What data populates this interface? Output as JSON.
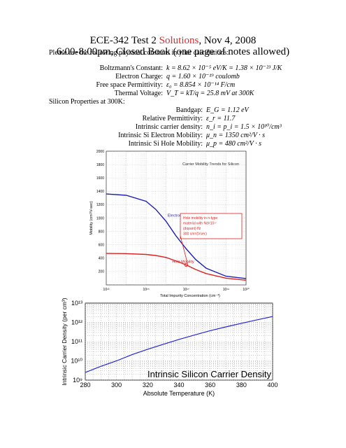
{
  "header": {
    "title_prefix": "ECE-342 Test 2 ",
    "title_solutions": "Solutions",
    "title_suffix": ", Nov 4, 2008",
    "subtitle": "6:00-8:00pm, Closed Book (one page of notes allowed)",
    "intro": "Please use the following physical constants in your calculations:"
  },
  "constants": [
    {
      "label": "Boltzmann's Constant:",
      "value": "k = 8.62 × 10⁻⁵ eV/K = 1.38 × 10⁻²³ J/K"
    },
    {
      "label": "Electron Charge:",
      "value": "q = 1.60 × 10⁻¹⁹ coulomb"
    },
    {
      "label": "Free space Permittivity:",
      "value": "ε₀ = 8.854 × 10⁻¹⁴ F/cm"
    },
    {
      "label": "Thermal Voltage:",
      "value": "V_T = kT/q = 25.8 mV at 300K"
    }
  ],
  "silicon_heading": "Silicon Properties at 300K:",
  "silicon": [
    {
      "label": "Bandgap:",
      "value": "E_G = 1.12 eV"
    },
    {
      "label": "Relative Permittivity:",
      "value": "ε_r = 11.7"
    },
    {
      "label": "Intrinsic carrier density:",
      "value": "n_i = p_i = 1.5 × 10¹⁰/cm³"
    },
    {
      "label": "Intrinsic Si Electron Mobility:",
      "value": "μ_n = 1350 cm²/V · s"
    },
    {
      "label": "Intrinsic Si Hole Mobility:",
      "value": "μ_p = 480 cm²/V · s"
    }
  ],
  "chart_data": [
    {
      "type": "line",
      "title": "Carrier Mobility Trends for Silicon",
      "xlabel": "Total Impurity Concentration (cm⁻³)",
      "ylabel": "Mobility (cm²/V-sec)",
      "x_scale": "log",
      "xlim": [
        10000000000000.0,
        1e+20
      ],
      "ylim": [
        0,
        2000
      ],
      "x_ticks": [
        "10¹³",
        "10¹⁵",
        "10¹⁷",
        "10¹⁹",
        "10²⁰"
      ],
      "y_ticks": [
        "200",
        "400",
        "600",
        "800",
        "1000",
        "1200",
        "1400",
        "1600",
        "1800",
        "2000"
      ],
      "grid": true,
      "series": [
        {
          "name": "Electron Mobility",
          "color": "#1f1fb4",
          "x": [
            10000000000000.0,
            100000000000000.0,
            1000000000000000.0,
            3000000000000000.0,
            1e+16,
            3e+16,
            1e+17,
            3e+17,
            1e+18,
            1e+19,
            1e+20
          ],
          "values": [
            1360,
            1340,
            1250,
            1130,
            950,
            740,
            540,
            380,
            250,
            130,
            95
          ]
        },
        {
          "name": "Hole Mobility",
          "color": "#e02020",
          "x": [
            10000000000000.0,
            100000000000000.0,
            1000000000000000.0,
            3000000000000000.0,
            1e+16,
            3e+16,
            1e+17,
            3e+17,
            1e+18,
            1e+19,
            1e+20
          ],
          "values": [
            470,
            468,
            455,
            440,
            410,
            360,
            300,
            230,
            170,
            100,
            70
          ]
        }
      ],
      "marker": {
        "x": 1e+17,
        "y": 300
      },
      "annotation": {
        "lines": [
          "Hole mobility in n-type",
          "material with Nd=10¹⁷",
          "(dopant) Ifz",
          "300 cm²/(Vsec)"
        ]
      }
    },
    {
      "type": "line",
      "title": "Intrinsic Silicon Carrier Density",
      "xlabel": "Absolute Temperature (K)",
      "ylabel": "Intrinsic Carrier Density (per cm³)",
      "y_scale": "log",
      "xlim": [
        280,
        400
      ],
      "ylim": [
        1000000000.0,
        10000000000000.0
      ],
      "x_ticks": [
        "280",
        "300",
        "320",
        "340",
        "360",
        "380",
        "400"
      ],
      "y_ticks": [
        "10⁹",
        "10¹⁰",
        "10¹¹",
        "10¹²",
        "10¹³"
      ],
      "grid": true,
      "series": [
        {
          "color": "#2424d8",
          "x": [
            280,
            290,
            300,
            310,
            320,
            330,
            340,
            350,
            360,
            370,
            380,
            390,
            400
          ],
          "values": [
            2500000000.0,
            5200000000.0,
            10000000000.0,
            21000000000.0,
            40000000000.0,
            73000000000.0,
            130000000000.0,
            220000000000.0,
            370000000000.0,
            580000000000.0,
            890000000000.0,
            1350000000000.0,
            2000000000000.0
          ]
        }
      ]
    }
  ]
}
